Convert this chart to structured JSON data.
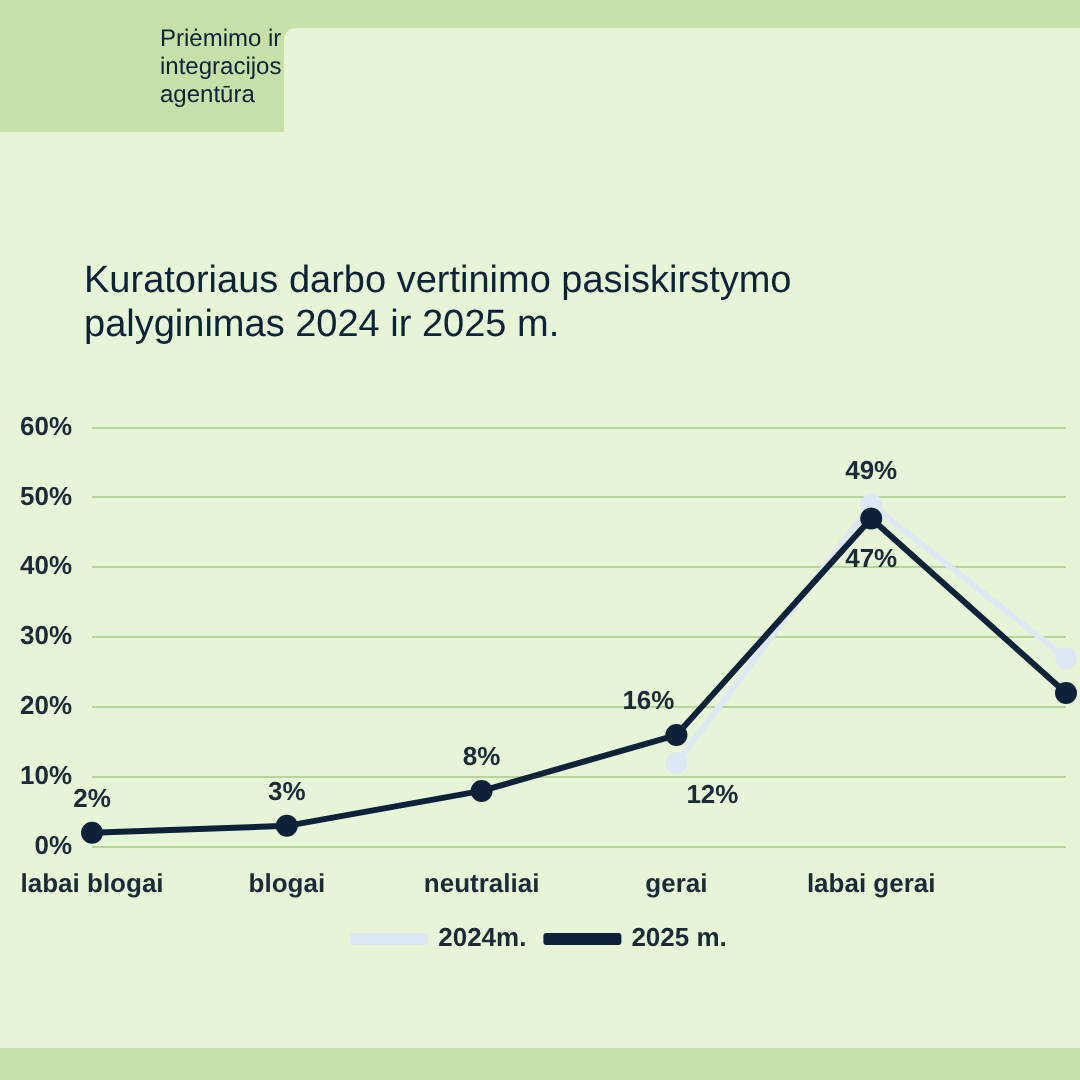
{
  "chart_data": {
    "type": "line",
    "title": "Kuratoriaus darbo vertinimo pasiskirstymo palyginimas 2024 ir 2025 m.",
    "annotations": [
      "Priėmimo ir integracijos agentūra"
    ],
    "categories": [
      "labai blogai",
      "blogai",
      "neutraliai",
      "gerai",
      "labai gerai",
      null
    ],
    "series": [
      {
        "name": "2024m.",
        "color": "#dde8f5",
        "values": [
          null,
          null,
          null,
          12,
          49,
          27
        ],
        "value_labels": [
          null,
          null,
          null,
          "12%",
          "49%",
          null
        ]
      },
      {
        "name": "2025 m.",
        "color": "#0b2239",
        "values": [
          2,
          3,
          8,
          16,
          47,
          22
        ],
        "value_labels": [
          "2%",
          "3%",
          "8%",
          "16%",
          "47%",
          null
        ]
      }
    ],
    "ylim": [
      0,
      60
    ],
    "yticks": [
      {
        "value": 0,
        "label": "0%"
      },
      {
        "value": 10,
        "label": "10%"
      },
      {
        "value": 20,
        "label": "20%"
      },
      {
        "value": 30,
        "label": "30%"
      },
      {
        "value": 40,
        "label": "40%"
      },
      {
        "value": 50,
        "label": "50%"
      },
      {
        "value": 60,
        "label": "60%"
      }
    ],
    "grid": "y",
    "legend": "bottom",
    "marker": "circle",
    "line_style": "solid"
  }
}
